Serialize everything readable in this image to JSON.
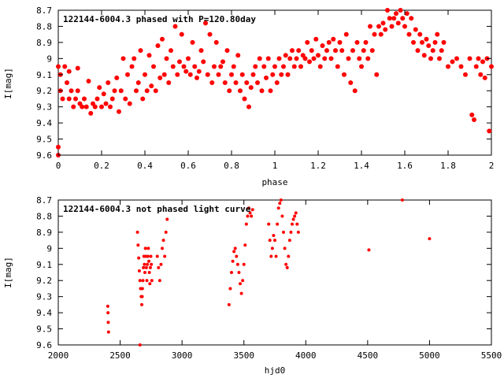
{
  "chart_data": [
    {
      "type": "scatter",
      "title": "122144-6004.3 phased with P=120.80day",
      "xlabel": "phase",
      "ylabel": "I[mag]",
      "xlim": [
        0,
        2
      ],
      "ylim": [
        8.7,
        9.6
      ],
      "y_inverted": true,
      "x_ticks": [
        "0",
        "0.2",
        "0.4",
        "0.6",
        "0.8",
        "1",
        "1.2",
        "1.4",
        "1.6",
        "1.8",
        "2"
      ],
      "x_tick_values": [
        0,
        0.2,
        0.4,
        0.6,
        0.8,
        1.0,
        1.2,
        1.4,
        1.6,
        1.8,
        2.0
      ],
      "y_ticks": [
        "8.7",
        "8.8",
        "8.9",
        "9",
        "9.1",
        "9.2",
        "9.3",
        "9.4",
        "9.5",
        "9.6"
      ],
      "y_tick_values": [
        8.7,
        8.8,
        8.9,
        9.0,
        9.1,
        9.2,
        9.3,
        9.4,
        9.5,
        9.6
      ],
      "grid": false,
      "marker_color": "#ff0000",
      "points": [
        [
          0.0,
          9.55
        ],
        [
          0.0,
          9.6
        ],
        [
          0.0,
          9.05
        ],
        [
          0.01,
          9.1
        ],
        [
          0.01,
          9.2
        ],
        [
          0.02,
          9.25
        ],
        [
          0.03,
          9.05
        ],
        [
          0.04,
          9.15
        ],
        [
          0.05,
          9.08
        ],
        [
          0.05,
          9.25
        ],
        [
          0.06,
          9.2
        ],
        [
          0.07,
          9.3
        ],
        [
          0.08,
          9.25
        ],
        [
          0.09,
          9.06
        ],
        [
          0.09,
          9.2
        ],
        [
          0.1,
          9.28
        ],
        [
          0.11,
          9.3
        ],
        [
          0.12,
          9.25
        ],
        [
          0.13,
          9.3
        ],
        [
          0.14,
          9.14
        ],
        [
          0.15,
          9.34
        ],
        [
          0.16,
          9.28
        ],
        [
          0.17,
          9.3
        ],
        [
          0.18,
          9.25
        ],
        [
          0.19,
          9.18
        ],
        [
          0.2,
          9.3
        ],
        [
          0.21,
          9.22
        ],
        [
          0.22,
          9.28
        ],
        [
          0.23,
          9.15
        ],
        [
          0.24,
          9.3
        ],
        [
          0.25,
          9.25
        ],
        [
          0.26,
          9.2
        ],
        [
          0.27,
          9.12
        ],
        [
          0.28,
          9.33
        ],
        [
          0.29,
          9.2
        ],
        [
          0.3,
          9.0
        ],
        [
          0.31,
          9.25
        ],
        [
          0.32,
          9.1
        ],
        [
          0.33,
          9.28
        ],
        [
          0.34,
          9.05
        ],
        [
          0.35,
          9.0
        ],
        [
          0.36,
          9.2
        ],
        [
          0.37,
          9.15
        ],
        [
          0.38,
          8.95
        ],
        [
          0.39,
          9.25
        ],
        [
          0.4,
          9.1
        ],
        [
          0.41,
          9.2
        ],
        [
          0.42,
          8.98
        ],
        [
          0.43,
          9.17
        ],
        [
          0.44,
          9.05
        ],
        [
          0.45,
          9.2
        ],
        [
          0.46,
          8.92
        ],
        [
          0.47,
          9.12
        ],
        [
          0.48,
          8.88
        ],
        [
          0.49,
          9.1
        ],
        [
          0.5,
          9.0
        ],
        [
          0.51,
          9.15
        ],
        [
          0.52,
          8.95
        ],
        [
          0.53,
          9.05
        ],
        [
          0.54,
          8.8
        ],
        [
          0.55,
          9.1
        ],
        [
          0.56,
          9.02
        ],
        [
          0.57,
          8.85
        ],
        [
          0.58,
          9.05
        ],
        [
          0.59,
          9.08
        ],
        [
          0.6,
          9.0
        ],
        [
          0.61,
          9.1
        ],
        [
          0.62,
          8.9
        ],
        [
          0.63,
          9.05
        ],
        [
          0.64,
          9.12
        ],
        [
          0.65,
          9.08
        ],
        [
          0.66,
          8.95
        ],
        [
          0.67,
          9.02
        ],
        [
          0.68,
          8.78
        ],
        [
          0.69,
          9.1
        ],
        [
          0.7,
          8.85
        ],
        [
          0.71,
          9.15
        ],
        [
          0.72,
          9.05
        ],
        [
          0.73,
          8.9
        ],
        [
          0.74,
          9.1
        ],
        [
          0.75,
          9.05
        ],
        [
          0.76,
          9.02
        ],
        [
          0.77,
          9.15
        ],
        [
          0.78,
          8.95
        ],
        [
          0.79,
          9.2
        ],
        [
          0.8,
          9.1
        ],
        [
          0.81,
          9.05
        ],
        [
          0.82,
          9.15
        ],
        [
          0.83,
          8.98
        ],
        [
          0.84,
          9.2
        ],
        [
          0.85,
          9.1
        ],
        [
          0.86,
          9.25
        ],
        [
          0.87,
          9.15
        ],
        [
          0.88,
          9.3
        ],
        [
          0.89,
          9.18
        ],
        [
          0.9,
          9.1
        ],
        [
          0.91,
          9.05
        ],
        [
          0.92,
          9.15
        ],
        [
          0.93,
          9.0
        ],
        [
          0.94,
          9.2
        ],
        [
          0.95,
          9.05
        ],
        [
          0.96,
          9.12
        ],
        [
          0.97,
          9.0
        ],
        [
          0.98,
          9.2
        ],
        [
          0.99,
          9.1
        ],
        [
          1.0,
          9.05
        ],
        [
          1.01,
          9.15
        ],
        [
          1.02,
          9.0
        ],
        [
          1.03,
          9.1
        ],
        [
          1.04,
          9.05
        ],
        [
          1.05,
          8.98
        ],
        [
          1.06,
          9.1
        ],
        [
          1.07,
          9.0
        ],
        [
          1.08,
          8.95
        ],
        [
          1.09,
          9.05
        ],
        [
          1.1,
          9.0
        ],
        [
          1.11,
          8.95
        ],
        [
          1.12,
          9.05
        ],
        [
          1.13,
          8.98
        ],
        [
          1.14,
          9.0
        ],
        [
          1.15,
          8.9
        ],
        [
          1.16,
          9.02
        ],
        [
          1.17,
          8.95
        ],
        [
          1.18,
          9.0
        ],
        [
          1.19,
          8.88
        ],
        [
          1.2,
          8.98
        ],
        [
          1.21,
          9.05
        ],
        [
          1.22,
          8.92
        ],
        [
          1.23,
          9.0
        ],
        [
          1.24,
          8.95
        ],
        [
          1.25,
          8.9
        ],
        [
          1.26,
          9.0
        ],
        [
          1.27,
          8.88
        ],
        [
          1.28,
          8.95
        ],
        [
          1.29,
          9.05
        ],
        [
          1.3,
          8.9
        ],
        [
          1.31,
          8.95
        ],
        [
          1.32,
          9.1
        ],
        [
          1.33,
          8.85
        ],
        [
          1.34,
          9.0
        ],
        [
          1.35,
          9.15
        ],
        [
          1.36,
          8.95
        ],
        [
          1.37,
          9.2
        ],
        [
          1.38,
          8.9
        ],
        [
          1.39,
          9.0
        ],
        [
          1.4,
          9.05
        ],
        [
          1.41,
          8.95
        ],
        [
          1.42,
          8.9
        ],
        [
          1.43,
          9.0
        ],
        [
          1.44,
          8.8
        ],
        [
          1.45,
          8.95
        ],
        [
          1.46,
          8.85
        ],
        [
          1.47,
          9.1
        ],
        [
          1.48,
          8.8
        ],
        [
          1.49,
          8.85
        ],
        [
          1.5,
          8.78
        ],
        [
          1.51,
          8.82
        ],
        [
          1.52,
          8.7
        ],
        [
          1.53,
          8.75
        ],
        [
          1.54,
          8.8
        ],
        [
          1.55,
          8.75
        ],
        [
          1.56,
          8.72
        ],
        [
          1.57,
          8.78
        ],
        [
          1.58,
          8.7
        ],
        [
          1.59,
          8.75
        ],
        [
          1.6,
          8.8
        ],
        [
          1.61,
          8.72
        ],
        [
          1.62,
          8.85
        ],
        [
          1.63,
          8.75
        ],
        [
          1.64,
          8.9
        ],
        [
          1.65,
          8.82
        ],
        [
          1.66,
          8.95
        ],
        [
          1.67,
          8.85
        ],
        [
          1.68,
          8.9
        ],
        [
          1.69,
          8.98
        ],
        [
          1.7,
          8.88
        ],
        [
          1.71,
          8.92
        ],
        [
          1.72,
          9.0
        ],
        [
          1.73,
          8.95
        ],
        [
          1.74,
          8.9
        ],
        [
          1.75,
          8.85
        ],
        [
          1.76,
          9.0
        ],
        [
          1.77,
          8.95
        ],
        [
          1.78,
          8.9
        ],
        [
          1.8,
          9.05
        ],
        [
          1.82,
          9.02
        ],
        [
          1.84,
          9.0
        ],
        [
          1.86,
          9.05
        ],
        [
          1.88,
          9.1
        ],
        [
          1.9,
          9.0
        ],
        [
          1.91,
          9.35
        ],
        [
          1.92,
          9.38
        ],
        [
          1.93,
          9.05
        ],
        [
          1.94,
          9.0
        ],
        [
          1.95,
          9.1
        ],
        [
          1.96,
          9.02
        ],
        [
          1.97,
          9.12
        ],
        [
          1.98,
          9.0
        ],
        [
          1.99,
          9.45
        ],
        [
          2.0,
          9.05
        ]
      ]
    },
    {
      "type": "scatter",
      "title": "122144-6004.3 not phased light curve",
      "xlabel": "hjd0",
      "ylabel": "I[mag]",
      "xlim": [
        2000,
        5500
      ],
      "ylim": [
        8.7,
        9.6
      ],
      "y_inverted": true,
      "x_ticks": [
        "2000",
        "2500",
        "3000",
        "3500",
        "4000",
        "4500",
        "5000",
        "5500"
      ],
      "x_tick_values": [
        2000,
        2500,
        3000,
        3500,
        4000,
        4500,
        5000,
        5500
      ],
      "y_ticks": [
        "8.7",
        "8.8",
        "8.9",
        "9",
        "9.1",
        "9.2",
        "9.3",
        "9.4",
        "9.5",
        "9.6"
      ],
      "y_tick_values": [
        8.7,
        8.8,
        8.9,
        9.0,
        9.1,
        9.2,
        9.3,
        9.4,
        9.5,
        9.6
      ],
      "grid": false,
      "marker_color": "#ff0000",
      "points": [
        [
          2400,
          9.36
        ],
        [
          2402,
          9.4
        ],
        [
          2404,
          9.46
        ],
        [
          2406,
          9.52
        ],
        [
          2640,
          8.9
        ],
        [
          2645,
          8.98
        ],
        [
          2650,
          9.06
        ],
        [
          2655,
          9.14
        ],
        [
          2660,
          9.2
        ],
        [
          2665,
          9.25
        ],
        [
          2670,
          9.3
        ],
        [
          2675,
          9.35
        ],
        [
          2678,
          9.3
        ],
        [
          2680,
          9.25
        ],
        [
          2684,
          9.2
        ],
        [
          2688,
          9.12
        ],
        [
          2692,
          9.05
        ],
        [
          2696,
          9.1
        ],
        [
          2700,
          9.15
        ],
        [
          2704,
          9.0
        ],
        [
          2708,
          9.05
        ],
        [
          2712,
          9.12
        ],
        [
          2716,
          9.2
        ],
        [
          2720,
          9.1
        ],
        [
          2724,
          9.05
        ],
        [
          2728,
          9.0
        ],
        [
          2732,
          9.08
        ],
        [
          2736,
          9.15
        ],
        [
          2740,
          9.22
        ],
        [
          2744,
          9.12
        ],
        [
          2748,
          9.05
        ],
        [
          2752,
          9.1
        ],
        [
          2756,
          9.2
        ],
        [
          2660,
          9.6
        ],
        [
          2800,
          9.05
        ],
        [
          2810,
          9.12
        ],
        [
          2820,
          9.2
        ],
        [
          2830,
          9.1
        ],
        [
          2840,
          9.0
        ],
        [
          2850,
          8.95
        ],
        [
          2860,
          9.05
        ],
        [
          2870,
          8.9
        ],
        [
          2880,
          8.82
        ],
        [
          3380,
          9.35
        ],
        [
          3390,
          9.25
        ],
        [
          3400,
          9.15
        ],
        [
          3410,
          9.08
        ],
        [
          3420,
          9.02
        ],
        [
          3430,
          9.0
        ],
        [
          3440,
          9.05
        ],
        [
          3450,
          9.1
        ],
        [
          3460,
          9.15
        ],
        [
          3470,
          9.22
        ],
        [
          3480,
          9.28
        ],
        [
          3490,
          9.2
        ],
        [
          3500,
          9.1
        ],
        [
          3510,
          8.98
        ],
        [
          3520,
          8.85
        ],
        [
          3530,
          8.8
        ],
        [
          3540,
          8.75
        ],
        [
          3550,
          8.78
        ],
        [
          3560,
          8.8
        ],
        [
          3570,
          8.76
        ],
        [
          3700,
          8.85
        ],
        [
          3710,
          8.95
        ],
        [
          3720,
          9.05
        ],
        [
          3730,
          9.0
        ],
        [
          3740,
          8.92
        ],
        [
          3750,
          8.95
        ],
        [
          3760,
          9.05
        ],
        [
          3770,
          8.85
        ],
        [
          3780,
          8.75
        ],
        [
          3790,
          8.72
        ],
        [
          3800,
          8.7
        ],
        [
          3810,
          8.8
        ],
        [
          3820,
          8.9
        ],
        [
          3830,
          9.0
        ],
        [
          3840,
          9.1
        ],
        [
          3850,
          9.12
        ],
        [
          3860,
          9.05
        ],
        [
          3870,
          8.95
        ],
        [
          3880,
          8.9
        ],
        [
          3890,
          8.85
        ],
        [
          3900,
          8.82
        ],
        [
          3910,
          8.8
        ],
        [
          3920,
          8.78
        ],
        [
          3930,
          8.85
        ],
        [
          3940,
          8.9
        ],
        [
          4510,
          9.01
        ],
        [
          4780,
          8.7
        ],
        [
          5000,
          8.94
        ]
      ]
    }
  ]
}
